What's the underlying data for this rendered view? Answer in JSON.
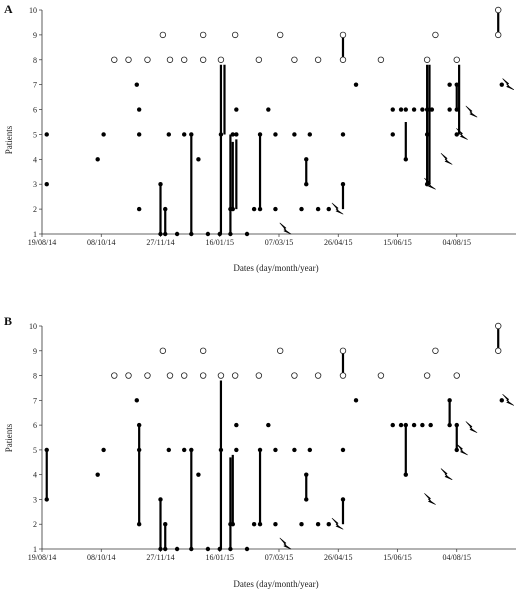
{
  "chart_data": [
    {
      "type": "scatter",
      "panel_label": "A",
      "xlabel": "Dates (day/month/year)",
      "ylabel": "Patients",
      "x_tick_labels": [
        "19/08/14",
        "08/10/14",
        "27/11/14",
        "16/01/15",
        "07/03/15",
        "26/04/15",
        "15/06/15",
        "04/08/15"
      ],
      "xlim": [
        "2014-08-19",
        "2015-09-23"
      ],
      "ylim": [
        1,
        10
      ],
      "y_ticks": [
        1,
        2,
        3,
        4,
        5,
        6,
        7,
        8,
        9,
        10
      ],
      "grid": false,
      "filled_points": [
        [
          "2014-08-23",
          3
        ],
        [
          "2014-08-23",
          5
        ],
        [
          "2014-10-05",
          4
        ],
        [
          "2014-10-10",
          5
        ],
        [
          "2014-11-07",
          7
        ],
        [
          "2014-11-09",
          6
        ],
        [
          "2014-11-09",
          5
        ],
        [
          "2014-11-09",
          2
        ],
        [
          "2014-11-27",
          3
        ],
        [
          "2014-11-27",
          1
        ],
        [
          "2014-12-01",
          2
        ],
        [
          "2014-12-01",
          1
        ],
        [
          "2014-12-04",
          5
        ],
        [
          "2014-12-11",
          1
        ],
        [
          "2014-12-17",
          5
        ],
        [
          "2014-12-23",
          5
        ],
        [
          "2014-12-23",
          1
        ],
        [
          "2014-12-29",
          4
        ],
        [
          "2015-01-06",
          1
        ],
        [
          "2015-01-16",
          1
        ],
        [
          "2015-01-17",
          5
        ],
        [
          "2015-01-25",
          2
        ],
        [
          "2015-01-25",
          1
        ],
        [
          "2015-01-27",
          2
        ],
        [
          "2015-01-30",
          6
        ],
        [
          "2015-01-30",
          5
        ],
        [
          "2015-01-27",
          5
        ],
        [
          "2015-02-08",
          1
        ],
        [
          "2015-02-14",
          2
        ],
        [
          "2015-02-19",
          5
        ],
        [
          "2015-02-19",
          2
        ],
        [
          "2015-02-26",
          6
        ],
        [
          "2015-03-04",
          5
        ],
        [
          "2015-03-04",
          2
        ],
        [
          "2015-03-20",
          5
        ],
        [
          "2015-03-26",
          2
        ],
        [
          "2015-03-30",
          4
        ],
        [
          "2015-03-30",
          3
        ],
        [
          "2015-04-02",
          5
        ],
        [
          "2015-04-09",
          2
        ],
        [
          "2015-04-18",
          2
        ],
        [
          "2015-04-30",
          3
        ],
        [
          "2015-04-30",
          5
        ],
        [
          "2015-05-11",
          7
        ],
        [
          "2015-06-11",
          5
        ],
        [
          "2015-06-11",
          6
        ],
        [
          "2015-06-18",
          6
        ],
        [
          "2015-06-22",
          6
        ],
        [
          "2015-06-22",
          4
        ],
        [
          "2015-06-29",
          6
        ],
        [
          "2015-07-06",
          6
        ],
        [
          "2015-07-10",
          5
        ],
        [
          "2015-07-10",
          3
        ],
        [
          "2015-07-10",
          6
        ],
        [
          "2015-07-14",
          6
        ],
        [
          "2015-07-29",
          7
        ],
        [
          "2015-07-29",
          6
        ],
        [
          "2015-08-04",
          7
        ],
        [
          "2015-08-04",
          6
        ],
        [
          "2015-08-04",
          5
        ],
        [
          "2015-09-11",
          7
        ]
      ],
      "open_points": [
        [
          "2014-10-19",
          8
        ],
        [
          "2014-10-31",
          8
        ],
        [
          "2014-11-16",
          8
        ],
        [
          "2014-11-29",
          9
        ],
        [
          "2014-12-05",
          8
        ],
        [
          "2014-12-17",
          8
        ],
        [
          "2015-01-02",
          9
        ],
        [
          "2015-01-02",
          8
        ],
        [
          "2015-01-17",
          8
        ],
        [
          "2015-01-29",
          9
        ],
        [
          "2015-02-18",
          8
        ],
        [
          "2015-03-08",
          9
        ],
        [
          "2015-03-20",
          8
        ],
        [
          "2015-04-09",
          8
        ],
        [
          "2015-04-30",
          9
        ],
        [
          "2015-04-30",
          8
        ],
        [
          "2015-06-01",
          8
        ],
        [
          "2015-07-10",
          8
        ],
        [
          "2015-07-17",
          9
        ],
        [
          "2015-08-04",
          8
        ],
        [
          "2015-09-08",
          10
        ],
        [
          "2015-09-08",
          9
        ]
      ],
      "vertical_segments": [
        [
          "2014-11-27",
          1,
          3
        ],
        [
          "2014-12-01",
          1,
          2
        ],
        [
          "2014-12-23",
          1,
          5
        ],
        [
          "2015-01-17",
          1,
          7.8
        ],
        [
          "2015-01-20",
          5,
          7.8
        ],
        [
          "2015-01-25",
          1,
          5
        ],
        [
          "2015-01-27",
          2,
          4.7
        ],
        [
          "2015-01-30",
          2,
          4.8
        ],
        [
          "2015-02-19",
          2,
          5
        ],
        [
          "2015-03-30",
          3,
          4
        ],
        [
          "2015-04-30",
          8,
          9
        ],
        [
          "2015-04-30",
          2,
          3
        ],
        [
          "2015-06-22",
          4,
          5.5
        ],
        [
          "2015-07-10",
          3,
          7.8
        ],
        [
          "2015-07-12",
          3,
          7.8
        ],
        [
          "2015-08-04",
          6,
          7
        ],
        [
          "2015-08-06",
          5,
          7.8
        ],
        [
          "2015-09-08",
          9,
          10
        ]
      ],
      "lightning_markers": [
        [
          "2015-03-12",
          1.2
        ],
        [
          "2015-04-25",
          2
        ],
        [
          "2015-07-12",
          3
        ],
        [
          "2015-07-26",
          4
        ],
        [
          "2015-08-08",
          5
        ],
        [
          "2015-08-16",
          5.9
        ],
        [
          "2015-09-16",
          7
        ]
      ]
    },
    {
      "type": "scatter",
      "panel_label": "B",
      "xlabel": "Dates (day/month/year)",
      "ylabel": "Patients",
      "x_tick_labels": [
        "19/08/14",
        "08/10/14",
        "27/11/14",
        "16/01/15",
        "07/03/15",
        "26/04/15",
        "15/06/15",
        "04/08/15"
      ],
      "xlim": [
        "2014-08-19",
        "2015-09-23"
      ],
      "ylim": [
        1,
        10
      ],
      "y_ticks": [
        1,
        2,
        3,
        4,
        5,
        6,
        7,
        8,
        9,
        10
      ],
      "grid": false,
      "filled_points": [
        [
          "2014-08-23",
          5
        ],
        [
          "2014-08-23",
          3
        ],
        [
          "2014-10-05",
          4
        ],
        [
          "2014-10-10",
          5
        ],
        [
          "2014-11-07",
          7
        ],
        [
          "2014-11-09",
          6
        ],
        [
          "2014-11-09",
          5
        ],
        [
          "2014-11-09",
          2
        ],
        [
          "2014-11-27",
          3
        ],
        [
          "2014-11-27",
          1
        ],
        [
          "2014-12-01",
          2
        ],
        [
          "2014-12-01",
          1
        ],
        [
          "2014-12-04",
          5
        ],
        [
          "2014-12-11",
          1
        ],
        [
          "2014-12-17",
          5
        ],
        [
          "2014-12-23",
          5
        ],
        [
          "2014-12-23",
          1
        ],
        [
          "2014-12-29",
          4
        ],
        [
          "2015-01-06",
          1
        ],
        [
          "2015-01-16",
          1
        ],
        [
          "2015-01-17",
          5
        ],
        [
          "2015-01-25",
          2
        ],
        [
          "2015-01-25",
          1
        ],
        [
          "2015-01-27",
          2
        ],
        [
          "2015-01-30",
          6
        ],
        [
          "2015-01-30",
          5
        ],
        [
          "2015-02-08",
          1
        ],
        [
          "2015-02-14",
          2
        ],
        [
          "2015-02-19",
          5
        ],
        [
          "2015-02-19",
          2
        ],
        [
          "2015-02-26",
          6
        ],
        [
          "2015-03-04",
          5
        ],
        [
          "2015-03-04",
          2
        ],
        [
          "2015-03-20",
          5
        ],
        [
          "2015-03-26",
          2
        ],
        [
          "2015-03-30",
          4
        ],
        [
          "2015-03-30",
          3
        ],
        [
          "2015-04-02",
          5
        ],
        [
          "2015-04-09",
          2
        ],
        [
          "2015-04-18",
          2
        ],
        [
          "2015-04-30",
          3
        ],
        [
          "2015-04-30",
          5
        ],
        [
          "2015-05-11",
          7
        ],
        [
          "2015-06-11",
          6
        ],
        [
          "2015-06-18",
          6
        ],
        [
          "2015-06-22",
          6
        ],
        [
          "2015-06-22",
          4
        ],
        [
          "2015-06-29",
          6
        ],
        [
          "2015-07-06",
          6
        ],
        [
          "2015-07-13",
          6
        ],
        [
          "2015-07-29",
          7
        ],
        [
          "2015-07-29",
          6
        ],
        [
          "2015-08-04",
          5
        ],
        [
          "2015-08-04",
          6
        ],
        [
          "2015-09-11",
          7
        ]
      ],
      "open_points": [
        [
          "2014-10-19",
          8
        ],
        [
          "2014-10-31",
          8
        ],
        [
          "2014-11-16",
          8
        ],
        [
          "2014-11-29",
          9
        ],
        [
          "2014-12-05",
          8
        ],
        [
          "2014-12-17",
          8
        ],
        [
          "2015-01-02",
          9
        ],
        [
          "2015-01-02",
          8
        ],
        [
          "2015-01-17",
          8
        ],
        [
          "2015-01-29",
          8
        ],
        [
          "2015-02-18",
          8
        ],
        [
          "2015-03-08",
          9
        ],
        [
          "2015-03-20",
          8
        ],
        [
          "2015-04-09",
          8
        ],
        [
          "2015-04-30",
          9
        ],
        [
          "2015-04-30",
          8
        ],
        [
          "2015-06-01",
          8
        ],
        [
          "2015-07-10",
          8
        ],
        [
          "2015-07-17",
          9
        ],
        [
          "2015-08-04",
          8
        ],
        [
          "2015-09-08",
          10
        ],
        [
          "2015-09-08",
          9
        ]
      ],
      "vertical_segments": [
        [
          "2014-08-23",
          3,
          5
        ],
        [
          "2014-11-09",
          2,
          6
        ],
        [
          "2014-11-27",
          1,
          3
        ],
        [
          "2014-12-01",
          1,
          2
        ],
        [
          "2014-12-23",
          1,
          5
        ],
        [
          "2015-01-17",
          1,
          7.8
        ],
        [
          "2015-01-25",
          1,
          4.7
        ],
        [
          "2015-01-27",
          2,
          4.8
        ],
        [
          "2015-02-19",
          2,
          5
        ],
        [
          "2015-03-30",
          3,
          4
        ],
        [
          "2015-04-30",
          8,
          9
        ],
        [
          "2015-04-30",
          2,
          3
        ],
        [
          "2015-06-22",
          4,
          6
        ],
        [
          "2015-07-29",
          6,
          7
        ],
        [
          "2015-08-04",
          5,
          6
        ],
        [
          "2015-09-08",
          9,
          10
        ]
      ],
      "lightning_markers": [
        [
          "2015-03-12",
          1.2
        ],
        [
          "2015-04-25",
          2
        ],
        [
          "2015-07-12",
          3
        ],
        [
          "2015-07-26",
          4
        ],
        [
          "2015-08-08",
          5
        ],
        [
          "2015-08-16",
          5.9
        ],
        [
          "2015-09-16",
          7
        ]
      ]
    }
  ]
}
